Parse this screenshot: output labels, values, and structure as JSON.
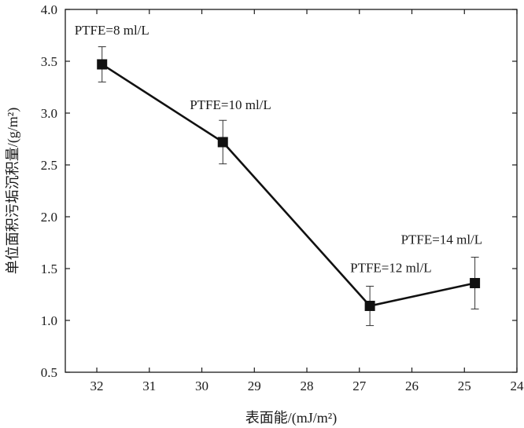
{
  "chart_data": {
    "type": "line",
    "title": "",
    "xlabel": "表面能/(mJ/m²)",
    "ylabel": "单位面积污垢沉积量/(g/m²)",
    "xlim": [
      32.6,
      24.0
    ],
    "ylim": [
      0.5,
      4.0
    ],
    "x_reversed": true,
    "xticks": [
      32,
      31,
      30,
      29,
      28,
      27,
      26,
      25,
      24
    ],
    "yticks": [
      0.5,
      1.0,
      1.5,
      2.0,
      2.5,
      3.0,
      3.5,
      4.0
    ],
    "ytick_labels": [
      "0.5",
      "1.0",
      "1.5",
      "2.0",
      "2.5",
      "3.0",
      "3.5",
      "4.0"
    ],
    "grid": false,
    "series": [
      {
        "name": "污垢沉积量",
        "color": "#111111",
        "marker": "square",
        "points": [
          {
            "x": 31.9,
            "y": 3.47,
            "err_low": 0.17,
            "err_high": 0.17,
            "label": "PTFE=8 ml/L"
          },
          {
            "x": 29.6,
            "y": 2.72,
            "err_low": 0.21,
            "err_high": 0.21,
            "label": "PTFE=10 ml/L"
          },
          {
            "x": 26.8,
            "y": 1.14,
            "err_low": 0.19,
            "err_high": 0.19,
            "label": "PTFE=12 ml/L"
          },
          {
            "x": 24.8,
            "y": 1.36,
            "err_low": 0.25,
            "err_high": 0.25,
            "label": "PTFE=14 ml/L"
          }
        ]
      }
    ]
  }
}
